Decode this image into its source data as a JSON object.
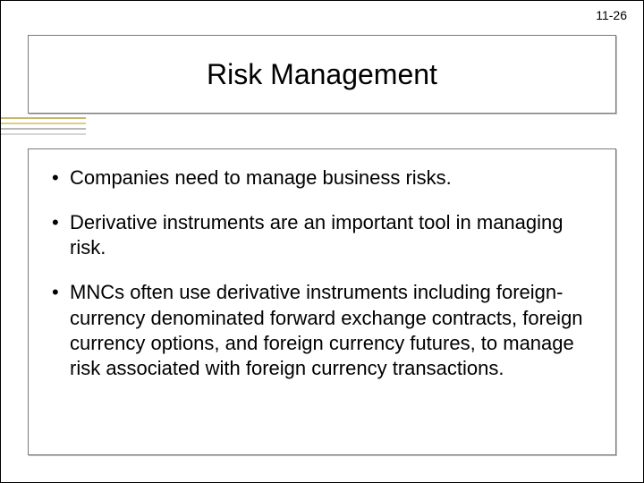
{
  "page_number": "11-26",
  "title": "Risk Management",
  "accent_colors": [
    "#c6b86a",
    "#d9ce90",
    "#b8b8b8",
    "#d4d4d4"
  ],
  "bullets": [
    "Companies need to manage business risks.",
    "Derivative instruments are an important tool in managing risk.",
    "MNCs often use derivative instruments including foreign-currency denominated forward exchange contracts, foreign currency options, and foreign currency futures, to manage risk associated with foreign currency transactions."
  ]
}
